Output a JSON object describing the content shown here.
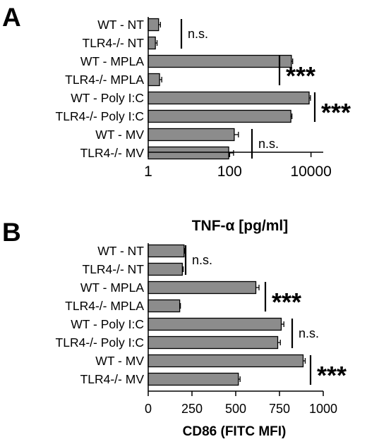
{
  "chart_data": [
    {
      "panel": "A",
      "type": "bar",
      "orientation": "horizontal",
      "title": "",
      "xlabel": "",
      "xscale": "log",
      "xlim": [
        1,
        20000
      ],
      "xticks": [
        1,
        100,
        10000
      ],
      "xtick_labels": [
        "1",
        "100",
        "10000"
      ],
      "categories": [
        "WT - NT",
        "TLR4-/- NT",
        "WT - MPLA",
        "TLR4-/- MPLA",
        "WT - Poly I:C",
        "TLR4-/- Poly I:C",
        "WT - MV",
        "TLR4-/- MV"
      ],
      "values": [
        1.8,
        1.5,
        3300,
        1.9,
        9000,
        3200,
        130,
        95
      ],
      "errors": [
        0.2,
        0.15,
        250,
        0.25,
        700,
        200,
        35,
        30
      ],
      "bar_color": "#8c8c8c",
      "grid": false,
      "legend": "none",
      "annotations": [
        {
          "rows": [
            0,
            1
          ],
          "text": "n.s."
        },
        {
          "rows": [
            2,
            3
          ],
          "text": "***"
        },
        {
          "rows": [
            4,
            5
          ],
          "text": "***"
        },
        {
          "rows": [
            6,
            7
          ],
          "text": "n.s."
        }
      ]
    },
    {
      "panel": "B",
      "type": "bar",
      "orientation": "horizontal",
      "title": "TNF-α [pg/ml]",
      "xlabel": "CD86 (FITC MFI)",
      "xscale": "linear",
      "xlim": [
        0,
        1000
      ],
      "xticks": [
        0,
        250,
        500,
        750,
        1000
      ],
      "xtick_labels": [
        "0",
        "250",
        "500",
        "750",
        "1000"
      ],
      "categories": [
        "WT - NT",
        "TLR4-/- NT",
        "WT - MPLA",
        "TLR4-/- MPLA",
        "WT - Poly I:C",
        "TLR4-/- Poly I:C",
        "WT - MV",
        "TLR4-/- MV"
      ],
      "values": [
        205,
        195,
        615,
        180,
        760,
        740,
        885,
        515
      ],
      "errors": [
        5,
        5,
        18,
        4,
        15,
        15,
        12,
        10
      ],
      "bar_color": "#8c8c8c",
      "grid": false,
      "legend": "none",
      "annotations": [
        {
          "rows": [
            0,
            1
          ],
          "text": "n.s."
        },
        {
          "rows": [
            2,
            3
          ],
          "text": "***"
        },
        {
          "rows": [
            4,
            5
          ],
          "text": "n.s."
        },
        {
          "rows": [
            6,
            7
          ],
          "text": "***"
        }
      ]
    }
  ]
}
